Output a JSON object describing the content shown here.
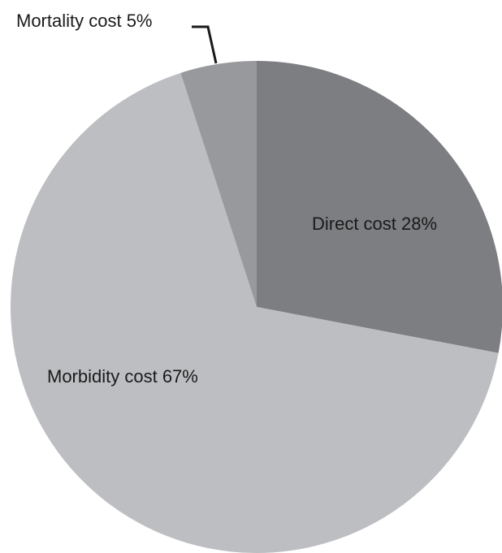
{
  "chart_data": {
    "type": "pie",
    "title": "",
    "start": "12 o'clock",
    "direction": "clockwise",
    "slices": [
      {
        "name": "Direct cost",
        "value": 28,
        "label": "Direct cost 28%",
        "color": "#7d7e81"
      },
      {
        "name": "Morbidity cost",
        "value": 67,
        "label": "Morbidity cost 67%",
        "color": "#bdbec1"
      },
      {
        "name": "Mortality cost",
        "value": 5,
        "label": "Mortality cost 5%",
        "color": "#98999c"
      }
    ],
    "legend": "none",
    "label_placement": "inside, except Mortality cost outside with leader line"
  }
}
